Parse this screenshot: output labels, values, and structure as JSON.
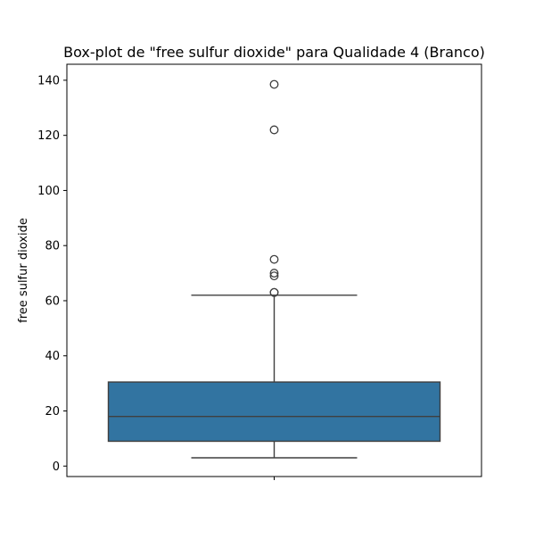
{
  "chart_data": {
    "type": "box",
    "title": "Box-plot de \"free sulfur dioxide\" para Qualidade 4 (Branco)",
    "xlabel": "",
    "ylabel": "free sulfur dioxide",
    "ylim": [
      -3.8,
      145.8
    ],
    "yticks": [
      0,
      20,
      40,
      60,
      80,
      100,
      120,
      140
    ],
    "grid": false,
    "legend": "none",
    "box": {
      "color": "#3274a1",
      "whisker_low": 3,
      "q1": 9,
      "median": 18,
      "q3": 30.5,
      "whisker_high": 62,
      "outliers": [
        63,
        63,
        69,
        70,
        75,
        122,
        138.5
      ]
    }
  }
}
